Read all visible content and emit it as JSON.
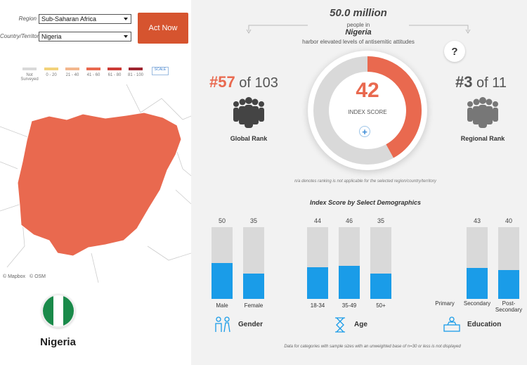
{
  "filters": {
    "region_label": "Region",
    "region_value": "Sub-Saharan Africa",
    "country_label": "Country/Territory",
    "country_value": "Nigeria",
    "act_now_label": "Act Now"
  },
  "map": {
    "legend": [
      {
        "label": "Not Surveyed",
        "color": "#d9d9d9"
      },
      {
        "label": "0 - 20",
        "color": "#f2d27a"
      },
      {
        "label": "21 - 40",
        "color": "#f3b78d"
      },
      {
        "label": "41 - 60",
        "color": "#e9694f"
      },
      {
        "label": "61 - 80",
        "color": "#cc3b36"
      },
      {
        "label": "81 - 100",
        "color": "#9e2530"
      }
    ],
    "scale_label": "SCALE",
    "country_fill": "#e9694f",
    "credits": [
      "© Mapbox",
      "© OSM"
    ]
  },
  "country": {
    "name": "Nigeria",
    "flag_colors": [
      "#1a8a4a",
      "#ffffff",
      "#1a8a4a"
    ]
  },
  "population": {
    "number": "50.0 million",
    "line1": "people in",
    "country": "Nigeria",
    "line3": "harbor elevated levels of antisemitic attitudes"
  },
  "help": {
    "symbol": "?"
  },
  "global_rank": {
    "rank": "#57",
    "of_text": "of 103",
    "label": "Global Rank",
    "icon": "people-group-icon"
  },
  "regional_rank": {
    "rank": "#3",
    "of_text": "of 11",
    "label": "Regional Rank",
    "icon": "people-group-icon"
  },
  "index": {
    "score": "42",
    "label": "INDEX SCORE",
    "expand_symbol": "+",
    "accent": "#e9694f"
  },
  "ranking_note": "n/a denotes ranking is not applicable for the selected region/country/territory",
  "demographics": {
    "title": "Index Score by Select Demographics",
    "bar_color": "#1a9ce8",
    "groups": [
      {
        "name": "Gender",
        "icon": "gender-icon",
        "bars": [
          {
            "label": "Male",
            "value": 50
          },
          {
            "label": "Female",
            "value": 35
          }
        ]
      },
      {
        "name": "Age",
        "icon": "hourglass-icon",
        "bars": [
          {
            "label": "18-34",
            "value": 44
          },
          {
            "label": "35-49",
            "value": 46
          },
          {
            "label": "50+",
            "value": 35
          }
        ]
      },
      {
        "name": "Education",
        "icon": "education-icon",
        "bars": [
          {
            "label": "Primary",
            "value": null
          },
          {
            "label": "Secondary",
            "value": 43
          },
          {
            "label": "Post-Secondary",
            "value": 40
          }
        ]
      }
    ],
    "footnote": "Data for categories with sample sizes with an unweighted base of n=30 or less is not displayed"
  },
  "chart_data": {
    "type": "bar",
    "title": "Index Score by Select Demographics",
    "categories": [
      "Male",
      "Female",
      "18-34",
      "35-49",
      "50+",
      "Primary",
      "Secondary",
      "Post-Secondary"
    ],
    "values": [
      50,
      35,
      44,
      46,
      35,
      null,
      43,
      40
    ],
    "ylim": [
      0,
      100
    ]
  }
}
